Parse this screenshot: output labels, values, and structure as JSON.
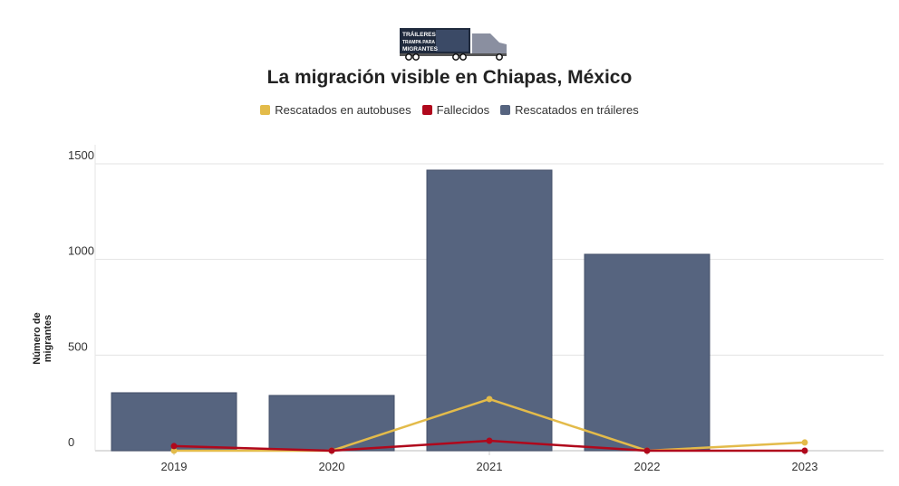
{
  "logo": {
    "text": "TRÁILERES TRAMPA PARA MIGRANTES"
  },
  "chart_data": {
    "type": "bar",
    "title": "La migración visible en Chiapas, México",
    "xlabel": "",
    "ylabel": "Número de migrantes",
    "ylim": [
      0,
      1600
    ],
    "yticks": [
      0,
      500,
      1000,
      1500
    ],
    "categories": [
      "2019",
      "2020",
      "2021",
      "2022",
      "2023"
    ],
    "legend_position": "top-center",
    "grid": true,
    "series": [
      {
        "name": "Rescatados en autobuses",
        "type": "line",
        "color": "#e3bb4a",
        "values": [
          0,
          0,
          270,
          0,
          43
        ]
      },
      {
        "name": "Fallecidos",
        "type": "line",
        "color": "#b0081c",
        "values": [
          24,
          0,
          52,
          0,
          0
        ]
      },
      {
        "name": "Rescatados en tráileres",
        "type": "bar",
        "color": "#56647f",
        "values": [
          303,
          289,
          1467,
          1027,
          0
        ]
      }
    ]
  }
}
